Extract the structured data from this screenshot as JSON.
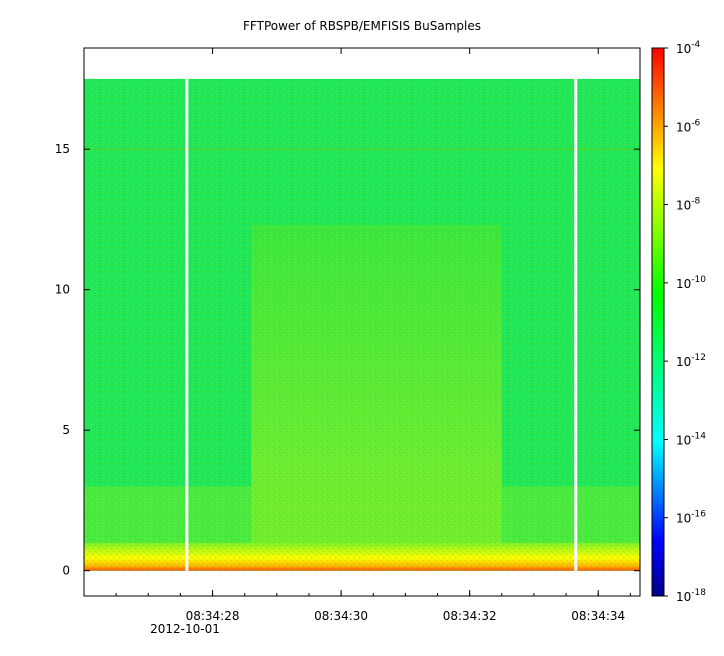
{
  "chart_data": {
    "type": "heatmap",
    "title": "FFTPower of RBSPB/EMFISIS  BuSamples",
    "xlabel": "",
    "ylabel": "",
    "x_ticks": [
      "08:34:28",
      "08:34:30",
      "08:34:32",
      "08:34:34"
    ],
    "x_tick_values_s": [
      28,
      30,
      32,
      34
    ],
    "x_date_label": "2012-10-01",
    "xlim_s": [
      26.0,
      34.65
    ],
    "y_ticks": [
      "0",
      "5",
      "10",
      "15"
    ],
    "y_tick_values": [
      0,
      5,
      10,
      15
    ],
    "ylim": [
      -0.9,
      18.6
    ],
    "data_ymax": 17.5,
    "colorbar": {
      "scale": "log",
      "range_exponent": [
        -18,
        -4
      ],
      "tick_base": "10",
      "tick_exponents": [
        "-4",
        "-6",
        "-8",
        "-10",
        "-12",
        "-14",
        "-16",
        "-18"
      ],
      "colormap": [
        "#00008b",
        "#0000ff",
        "#00ffff",
        "#00ff00",
        "#ffff00",
        "#ff0000"
      ]
    },
    "gaps_s": [
      27.6,
      33.65
    ],
    "regions": [
      {
        "name": "background",
        "t_start_s": 26.0,
        "t_end_s": 34.65,
        "power_exponent": -11.3
      },
      {
        "name": "enhanced band",
        "t_start_s": 28.6,
        "t_end_s": 32.5,
        "f_max": 12.3,
        "power_exponent": -10.2
      },
      {
        "name": "low-frequency band",
        "f_min": 0,
        "f_max": 1.0,
        "power_exponent": -8.5
      }
    ],
    "grid": false
  }
}
